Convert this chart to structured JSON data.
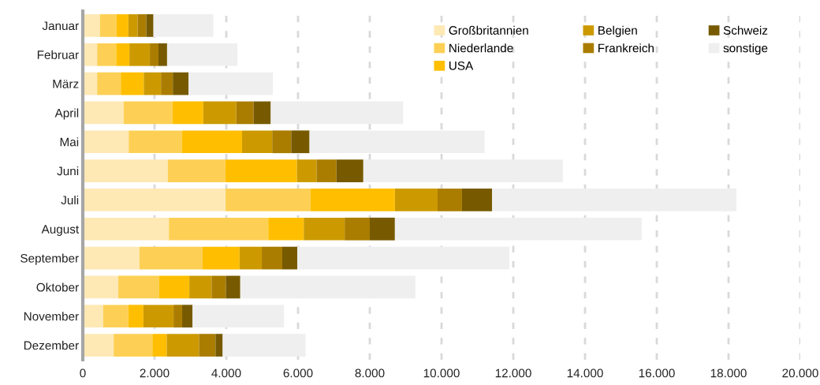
{
  "chart_data": {
    "type": "bar",
    "orientation": "horizontal",
    "stacked": true,
    "categories": [
      "Januar",
      "Februar",
      "März",
      "April",
      "Mai",
      "Juni",
      "Juli",
      "August",
      "September",
      "Oktober",
      "November",
      "Dezember"
    ],
    "series": [
      {
        "name": "Großbritannien",
        "color": "#fee9b5",
        "values": [
          480,
          400,
          400,
          1140,
          1280,
          2370,
          3980,
          2400,
          1580,
          990,
          570,
          860
        ]
      },
      {
        "name": "Niederlande",
        "color": "#fdd055",
        "values": [
          460,
          530,
          660,
          1360,
          1490,
          1600,
          2370,
          2770,
          1760,
          1140,
          700,
          1080
        ]
      },
      {
        "name": "USA",
        "color": "#ffbf00",
        "values": [
          330,
          370,
          640,
          860,
          1670,
          2000,
          2350,
          990,
          1030,
          840,
          420,
          400
        ]
      },
      {
        "name": "Belgien",
        "color": "#cc9a00",
        "values": [
          260,
          570,
          480,
          920,
          840,
          550,
          1190,
          1140,
          620,
          620,
          840,
          900
        ]
      },
      {
        "name": "Frankreich",
        "color": "#aa7d00",
        "values": [
          240,
          240,
          330,
          480,
          530,
          550,
          680,
          700,
          570,
          400,
          240,
          460
        ]
      },
      {
        "name": "Schweiz",
        "color": "#775a00",
        "values": [
          200,
          240,
          440,
          480,
          510,
          750,
          840,
          700,
          420,
          400,
          290,
          200
        ]
      },
      {
        "name": "sonstige",
        "color": "#efefef",
        "values": [
          1670,
          1960,
          2350,
          3690,
          4880,
          5560,
          6810,
          6880,
          5910,
          4880,
          2550,
          2310
        ]
      }
    ],
    "xlim": [
      0,
      20000
    ],
    "xticks": [
      0,
      {
        "value": 2000,
        "label": "2.000"
      },
      {
        "value": 4000,
        "label": "4.000"
      },
      {
        "value": 6000,
        "label": "6.000"
      },
      {
        "value": 8000,
        "label": "8.000"
      },
      {
        "value": 10000,
        "label": "10.000"
      },
      {
        "value": 12000,
        "label": "12.000"
      },
      {
        "value": 14000,
        "label": "14.000"
      },
      {
        "value": 16000,
        "label": "16.000"
      },
      {
        "value": 18000,
        "label": "18.000"
      },
      {
        "value": 20000,
        "label": "20.000"
      }
    ],
    "grid": "x",
    "legend": "top right"
  }
}
